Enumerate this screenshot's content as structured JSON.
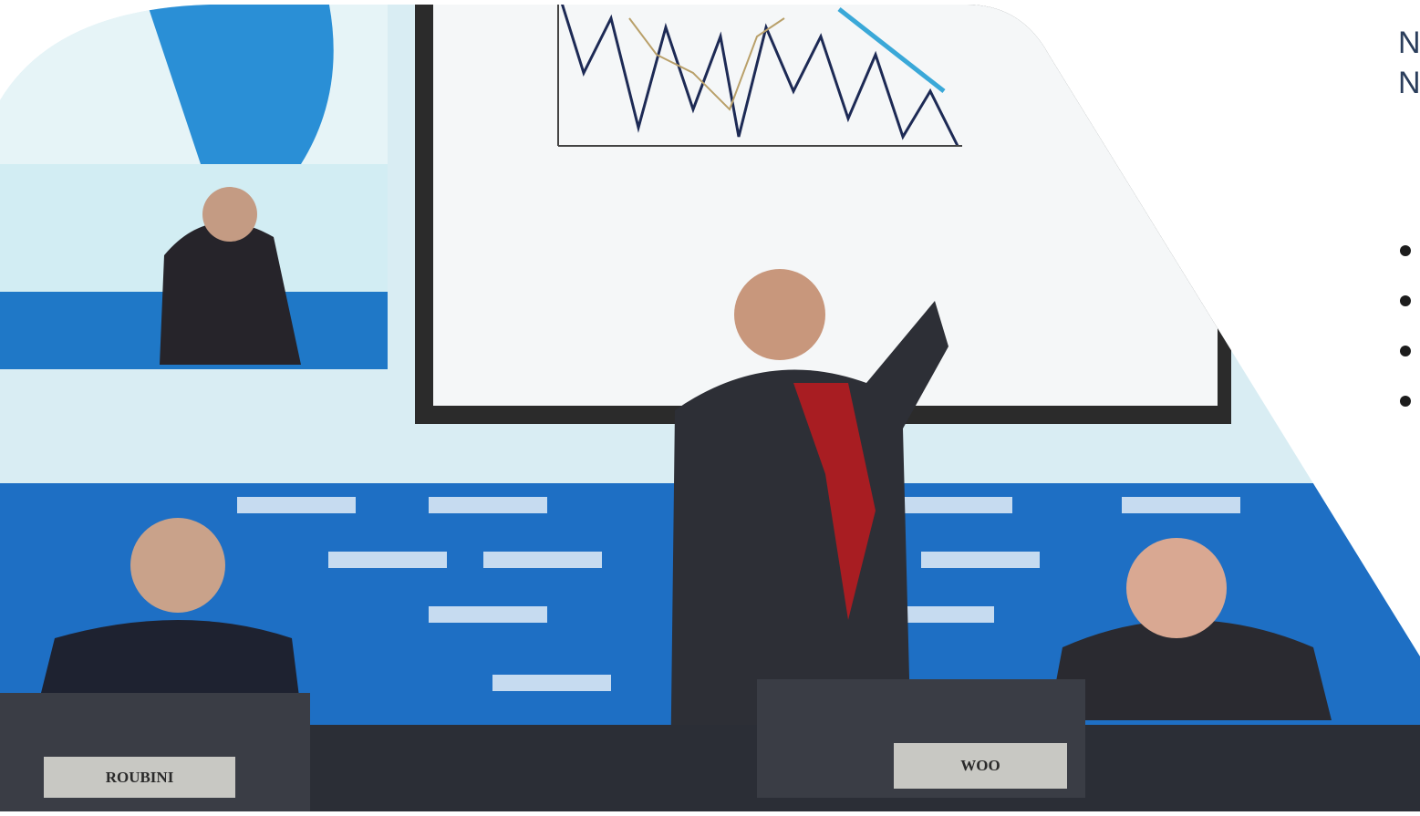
{
  "heading": {
    "lines": [
      "N",
      "N"
    ]
  },
  "photo": {
    "nameplates": [
      "ROUBINI",
      "WOO"
    ]
  }
}
